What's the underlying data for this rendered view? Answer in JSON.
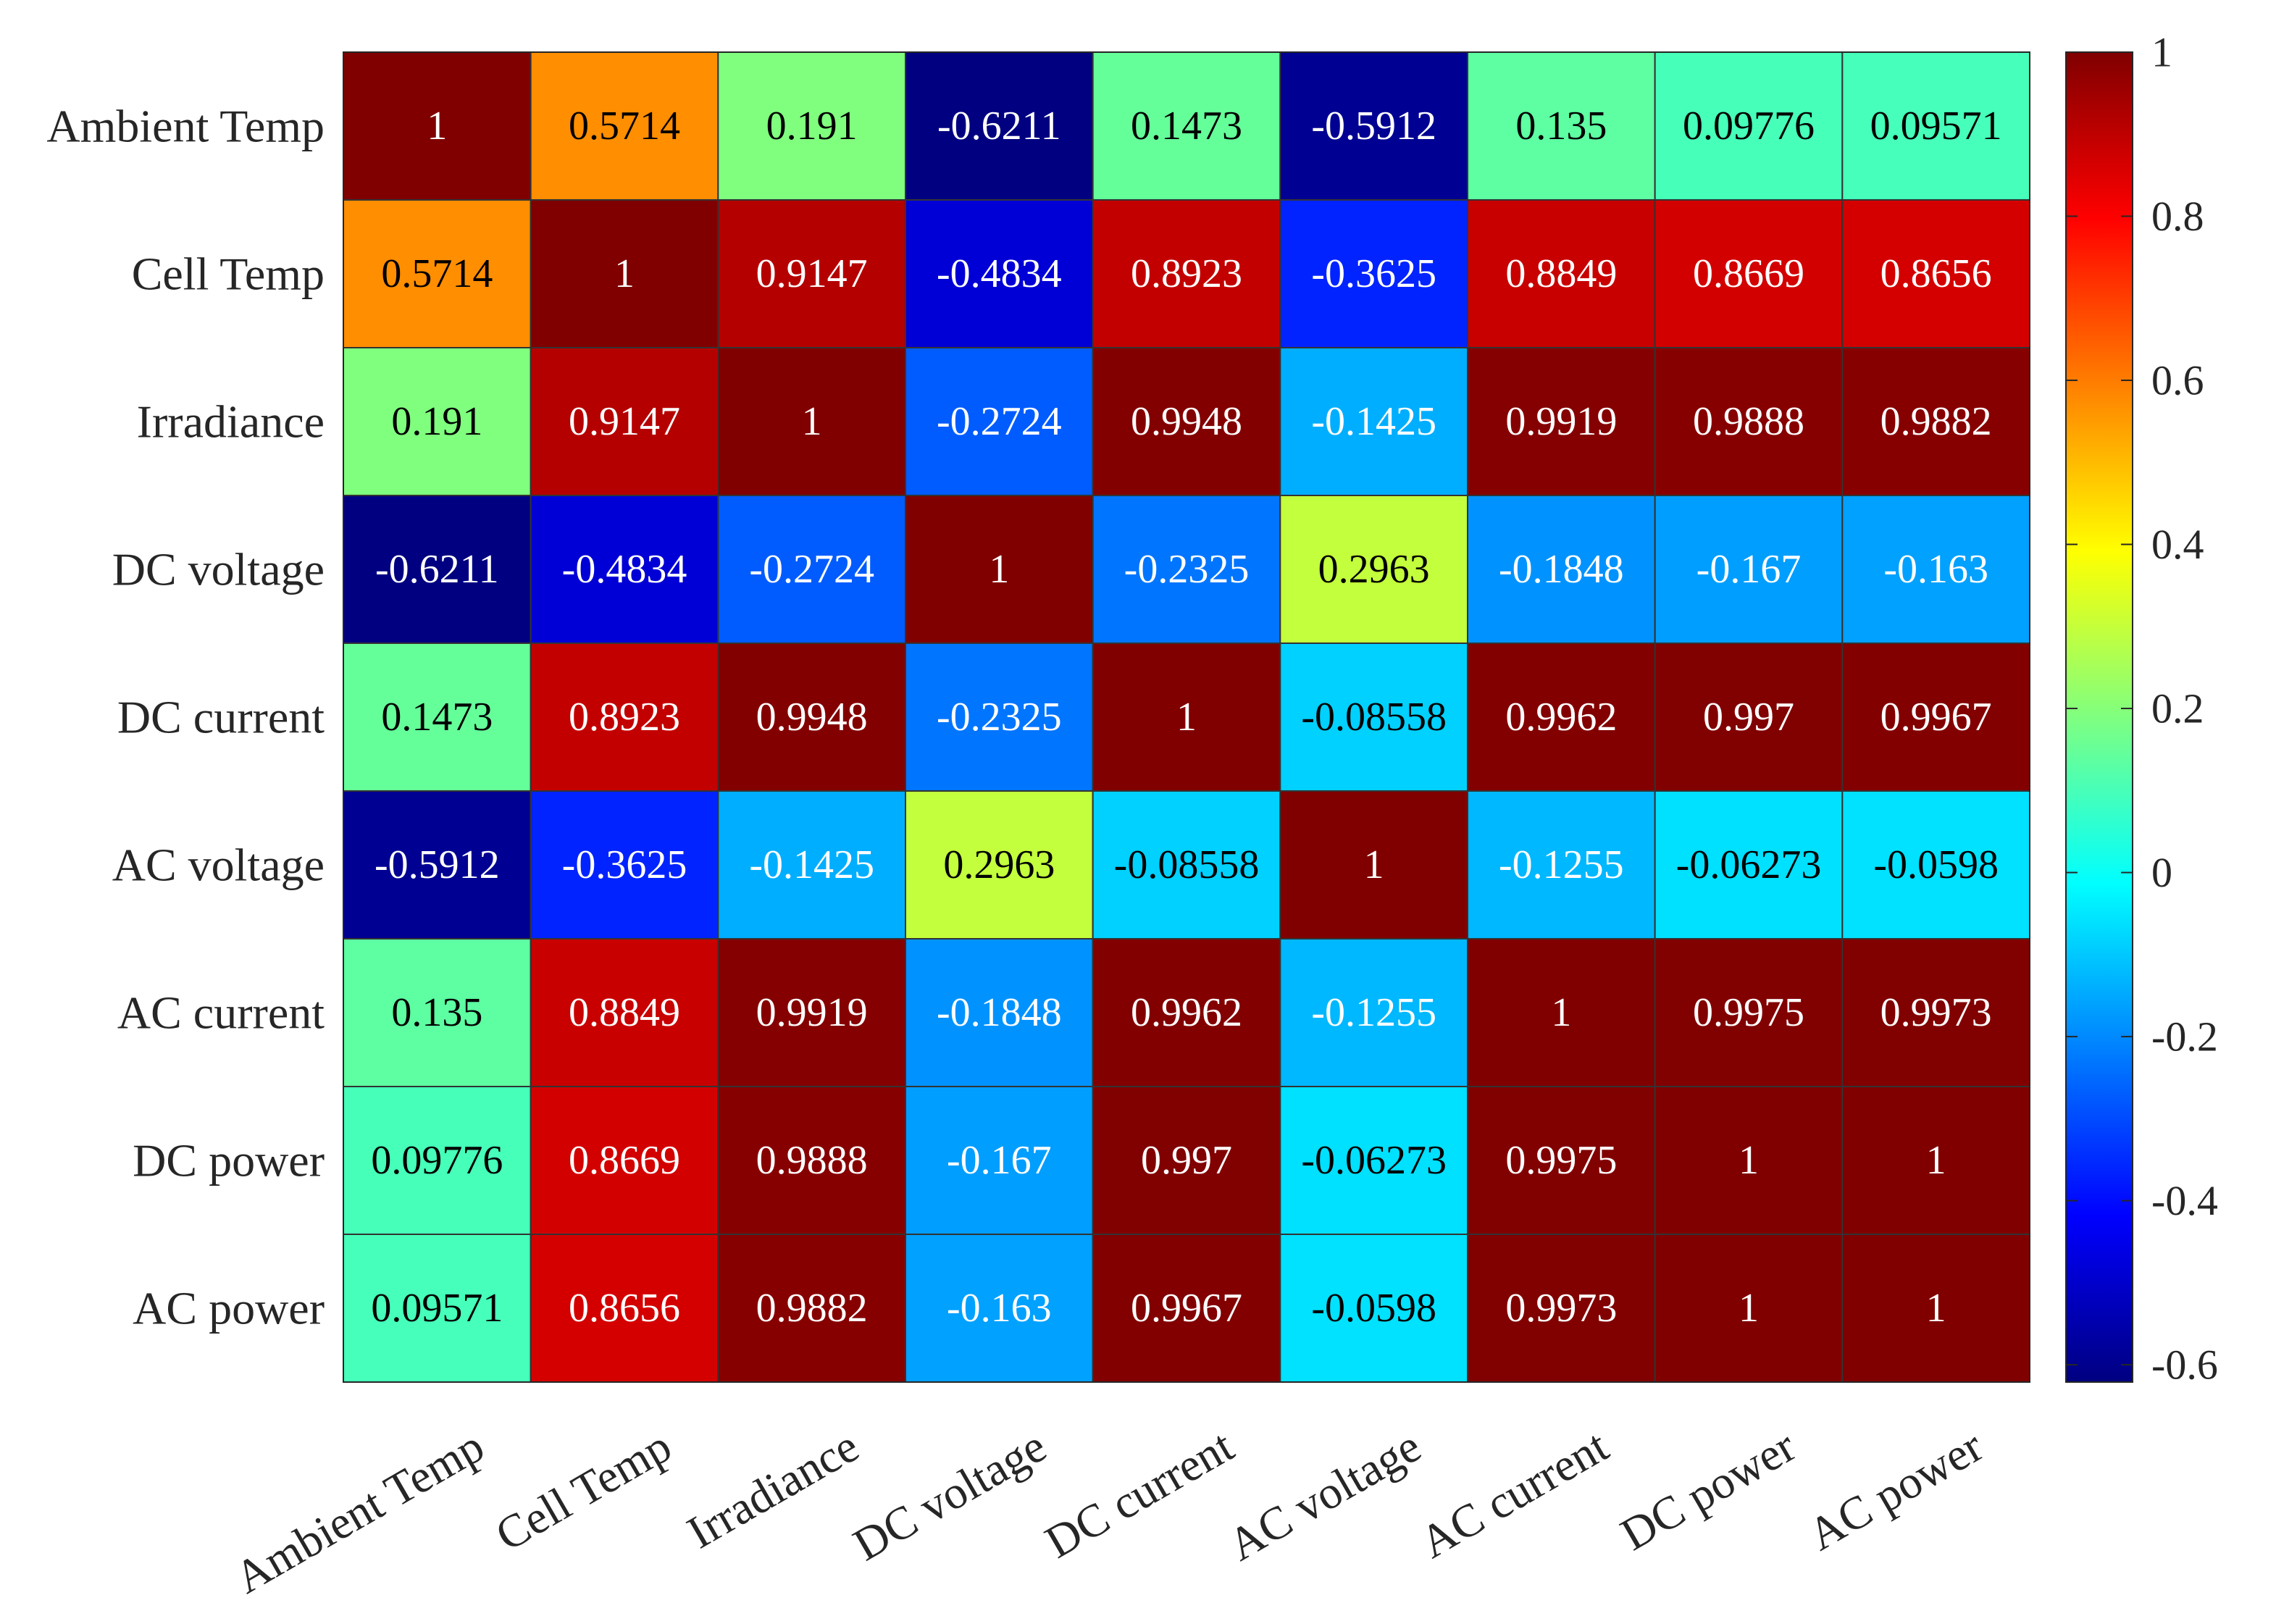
{
  "chart_data": {
    "type": "heatmap",
    "title": "",
    "row_labels": [
      "Ambient Temp",
      "Cell Temp",
      "Irradiance",
      "DC voltage",
      "DC current",
      "AC voltage",
      "AC current",
      "DC power",
      "AC power"
    ],
    "column_labels": [
      "Ambient Temp",
      "Cell Temp",
      "Irradiance",
      "DC voltage",
      "DC current",
      "AC voltage",
      "AC current",
      "DC power",
      "AC power"
    ],
    "values": [
      [
        1,
        0.5714,
        0.191,
        -0.6211,
        0.1473,
        -0.5912,
        0.135,
        0.09776,
        0.09571
      ],
      [
        0.5714,
        1,
        0.9147,
        -0.4834,
        0.8923,
        -0.3625,
        0.8849,
        0.8669,
        0.8656
      ],
      [
        0.191,
        0.9147,
        1,
        -0.2724,
        0.9948,
        -0.1425,
        0.9919,
        0.9888,
        0.9882
      ],
      [
        -0.6211,
        -0.4834,
        -0.2724,
        1,
        -0.2325,
        0.2963,
        -0.1848,
        -0.167,
        -0.163
      ],
      [
        0.1473,
        0.8923,
        0.9948,
        -0.2325,
        1,
        -0.08558,
        0.9962,
        0.997,
        0.9967
      ],
      [
        -0.5912,
        -0.3625,
        -0.1425,
        0.2963,
        -0.08558,
        1,
        -0.1255,
        -0.06273,
        -0.0598
      ],
      [
        0.135,
        0.8849,
        0.9919,
        -0.1848,
        0.9962,
        -0.1255,
        1,
        0.9975,
        0.9973
      ],
      [
        0.09776,
        0.8669,
        0.9888,
        -0.167,
        0.997,
        -0.06273,
        0.9975,
        1,
        1
      ],
      [
        0.09571,
        0.8656,
        0.9882,
        -0.163,
        0.9967,
        -0.0598,
        0.9973,
        1,
        1
      ]
    ],
    "cell_labels": [
      [
        "1",
        "0.5714",
        "0.191",
        "-0.6211",
        "0.1473",
        "-0.5912",
        "0.135",
        "0.09776",
        "0.09571"
      ],
      [
        "0.5714",
        "1",
        "0.9147",
        "-0.4834",
        "0.8923",
        "-0.3625",
        "0.8849",
        "0.8669",
        "0.8656"
      ],
      [
        "0.191",
        "0.9147",
        "1",
        "-0.2724",
        "0.9948",
        "-0.1425",
        "0.9919",
        "0.9888",
        "0.9882"
      ],
      [
        "-0.6211",
        "-0.4834",
        "-0.2724",
        "1",
        "-0.2325",
        "0.2963",
        "-0.1848",
        "-0.167",
        "-0.163"
      ],
      [
        "0.1473",
        "0.8923",
        "0.9948",
        "-0.2325",
        "1",
        "-0.08558",
        "0.9962",
        "0.997",
        "0.9967"
      ],
      [
        "-0.5912",
        "-0.3625",
        "-0.1425",
        "0.2963",
        "-0.08558",
        "1",
        "-0.1255",
        "-0.06273",
        "-0.0598"
      ],
      [
        "0.135",
        "0.8849",
        "0.9919",
        "-0.1848",
        "0.9962",
        "-0.1255",
        "1",
        "0.9975",
        "0.9973"
      ],
      [
        "0.09776",
        "0.8669",
        "0.9888",
        "-0.167",
        "0.997",
        "-0.06273",
        "0.9975",
        "1",
        "1"
      ],
      [
        "0.09571",
        "0.8656",
        "0.9882",
        "-0.163",
        "0.9967",
        "-0.0598",
        "0.9973",
        "1",
        "1"
      ]
    ],
    "colorbar": {
      "range": [
        -0.6211,
        1
      ],
      "ticks": [
        1,
        0.8,
        0.6,
        0.4,
        0.2,
        0,
        -0.2,
        -0.4,
        -0.6
      ],
      "tick_labels": [
        "1",
        "0.8",
        "0.6",
        "0.4",
        "0.2",
        "0",
        "-0.2",
        "-0.4",
        "-0.6"
      ],
      "colormap": "jet"
    }
  }
}
